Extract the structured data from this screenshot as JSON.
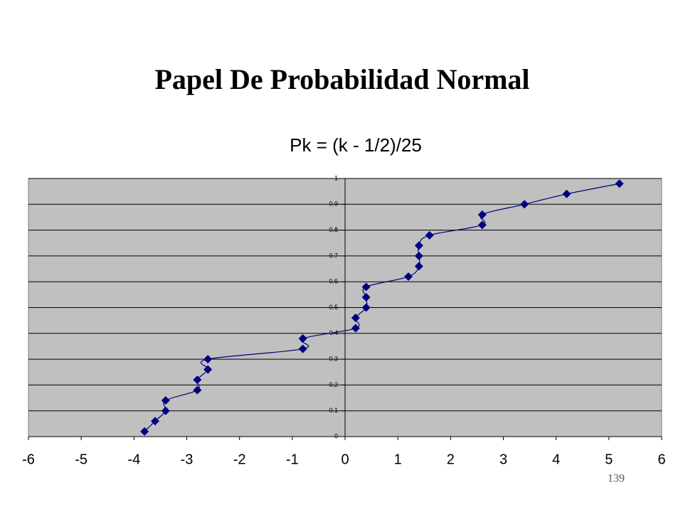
{
  "slide_title": "Papel De Probabilidad Normal",
  "page_number": "139",
  "chart_data": {
    "type": "scatter",
    "title": "Pk = (k - 1/2)/25",
    "x": [
      -3.8,
      -3.6,
      -3.4,
      -3.4,
      -2.8,
      -2.8,
      -2.6,
      -2.6,
      -0.8,
      -0.8,
      0.2,
      0.2,
      0.4,
      0.4,
      0.4,
      1.2,
      1.4,
      1.4,
      1.4,
      1.6,
      2.6,
      2.6,
      3.4,
      4.2,
      5.2
    ],
    "values": [
      0.02,
      0.06,
      0.1,
      0.14,
      0.18,
      0.22,
      0.26,
      0.3,
      0.34,
      0.38,
      0.42,
      0.46,
      0.5,
      0.54,
      0.58,
      0.62,
      0.66,
      0.7,
      0.74,
      0.78,
      0.82,
      0.86,
      0.9,
      0.94,
      0.98
    ],
    "color": "#000080",
    "xlim": [
      -6,
      6
    ],
    "xticks": [
      -6,
      -5,
      -4,
      -3,
      -2,
      -1,
      0,
      1,
      2,
      3,
      4,
      5,
      6
    ],
    "ylim": [
      0,
      1
    ],
    "yticks": [
      0,
      0.1,
      0.2,
      0.3,
      0.4,
      0.5,
      0.6,
      0.7,
      0.8,
      0.9,
      1
    ],
    "grid": true
  }
}
